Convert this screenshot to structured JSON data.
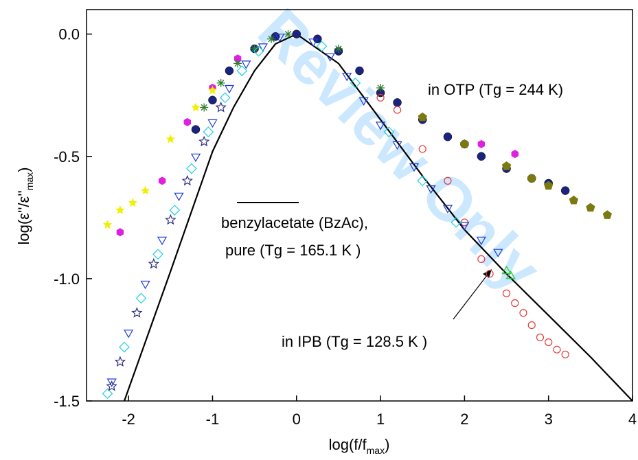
{
  "chart_data": {
    "type": "scatter",
    "xlabel_parts": [
      "log(f/f",
      "max",
      ")"
    ],
    "ylabel_parts": [
      "log(ε''/ε''",
      "max",
      ")"
    ],
    "watermark": "Review Only",
    "annotations": [
      "in OTP (Tg = 244 K)",
      "benzylacetate (BzAc),",
      "pure (Tg = 165.1 K )",
      "in IPB (Tg = 128.5 K )"
    ],
    "xlim": [
      -2.5,
      4
    ],
    "ylim": [
      -1.5,
      0.1
    ],
    "xticks": [
      -2,
      -1,
      0,
      1,
      2,
      3,
      4
    ],
    "yticks": [
      {
        "value": 0,
        "label": "0.0"
      },
      {
        "value": -0.5,
        "label": "-0.5"
      },
      {
        "value": -1,
        "label": "-1.0"
      },
      {
        "value": -1.5,
        "label": "-1.5"
      }
    ],
    "series": [
      {
        "kind": "line",
        "color": "#000000",
        "x": [
          -2.05,
          -1.5,
          -1,
          -0.75,
          -0.5,
          -0.25,
          0,
          0.5,
          1,
          1.5,
          2,
          2.5,
          3,
          3.5,
          4
        ],
        "values": [
          -1.5,
          -0.97,
          -0.48,
          -0.3,
          -0.15,
          -0.04,
          0,
          -0.12,
          -0.35,
          -0.58,
          -0.8,
          -0.98,
          -1.15,
          -1.32,
          -1.5
        ]
      },
      {
        "kind": "scatter",
        "marker": "ball",
        "color": "#1a237e",
        "x": [
          -1.2,
          -1.0,
          -0.8,
          -0.5,
          -0.25,
          0,
          0.25,
          0.5,
          0.75,
          1.0,
          1.2,
          1.5,
          1.8,
          2.0,
          2.2,
          2.5,
          2.8,
          3.0,
          3.2
        ],
        "values": [
          -0.39,
          -0.27,
          -0.15,
          -0.06,
          -0.01,
          0,
          -0.02,
          -0.07,
          -0.15,
          -0.24,
          -0.28,
          -0.35,
          -0.42,
          -0.45,
          -0.5,
          -0.55,
          -0.59,
          -0.61,
          -0.64
        ]
      },
      {
        "kind": "scatter",
        "marker": "pentagon",
        "color": "#7a7a10",
        "x": [
          1.5,
          2.0,
          2.5,
          2.8,
          3.0,
          3.3,
          3.5,
          3.7
        ],
        "values": [
          -0.34,
          -0.45,
          -0.54,
          -0.59,
          -0.62,
          -0.68,
          -0.71,
          -0.74
        ]
      },
      {
        "kind": "scatter",
        "marker": "hexagon",
        "color": "#e020e0",
        "x": [
          -2.1,
          -1.6,
          -1.3,
          -1.0,
          -0.7,
          2.2,
          2.6
        ],
        "values": [
          -0.81,
          -0.6,
          -0.36,
          -0.22,
          -0.1,
          -0.45,
          -0.49
        ]
      },
      {
        "kind": "scatter",
        "marker": "star",
        "color": "#f0f000",
        "x": [
          -2.25,
          -2.1,
          -1.95,
          -1.8,
          -1.5,
          -1.2,
          -1.0
        ],
        "values": [
          -0.78,
          -0.72,
          -0.69,
          -0.64,
          -0.43,
          -0.3,
          -0.23
        ]
      },
      {
        "kind": "scatter",
        "marker": "asterisk",
        "color": "#2e7d32",
        "x": [
          -1.1,
          -0.9,
          -0.7,
          -0.5,
          -0.3,
          -0.1,
          0.5,
          1.0
        ],
        "values": [
          -0.3,
          -0.2,
          -0.12,
          -0.06,
          -0.02,
          0,
          -0.06,
          -0.22
        ]
      },
      {
        "kind": "scatter",
        "marker": "circle-open",
        "color": "#e53935",
        "x": [
          1.0,
          1.2,
          1.5,
          1.8,
          2.0,
          2.2,
          2.3,
          2.5,
          2.6,
          2.7,
          2.8,
          2.9,
          3.0,
          3.1,
          3.2
        ],
        "values": [
          -0.26,
          -0.31,
          -0.47,
          -0.6,
          -0.77,
          -0.92,
          -0.98,
          -1.06,
          -1.1,
          -1.14,
          -1.19,
          -1.24,
          -1.26,
          -1.29,
          -1.31
        ]
      },
      {
        "kind": "scatter",
        "marker": "tri-down",
        "color": "#1e3cd8",
        "x": [
          -2.2,
          -2.0,
          -1.8,
          -1.6,
          -1.4,
          -1.2,
          -1.0,
          -0.8,
          -0.6,
          -0.4,
          -0.2,
          0.2,
          0.4,
          0.6,
          0.8,
          1.0,
          1.2,
          1.4,
          1.6,
          1.8,
          2.0,
          2.2,
          2.4
        ],
        "values": [
          -1.42,
          -1.22,
          -1.02,
          -0.84,
          -0.66,
          -0.5,
          -0.36,
          -0.22,
          -0.12,
          -0.05,
          -0.01,
          -0.03,
          -0.09,
          -0.17,
          -0.27,
          -0.37,
          -0.45,
          -0.54,
          -0.63,
          -0.71,
          -0.78,
          -0.84,
          -0.89
        ]
      },
      {
        "kind": "scatter",
        "marker": "tri-up",
        "color": "#22c822",
        "x": [
          2.5,
          2.55
        ],
        "values": [
          -0.97,
          -0.99
        ]
      },
      {
        "kind": "scatter",
        "marker": "diamond",
        "color": "#22d0e0",
        "x": [
          -2.25,
          -2.05,
          -1.85,
          -1.65,
          -1.45,
          -1.25,
          -1.05,
          -0.85,
          -0.65,
          -0.45,
          0.3,
          0.7,
          1.1,
          1.5,
          1.9
        ],
        "values": [
          -1.47,
          -1.28,
          -1.08,
          -0.9,
          -0.72,
          -0.55,
          -0.4,
          -0.26,
          -0.15,
          -0.07,
          -0.05,
          -0.2,
          -0.4,
          -0.6,
          -0.77
        ]
      },
      {
        "kind": "scatter",
        "marker": "star-open",
        "color": "#2a2a80",
        "x": [
          -2.2,
          -2.1,
          -1.9,
          -1.7,
          -1.5,
          -1.3,
          -1.1,
          -0.9
        ],
        "values": [
          -1.44,
          -1.34,
          -1.14,
          -0.94,
          -0.76,
          -0.6,
          -0.44,
          -0.3
        ]
      }
    ]
  }
}
